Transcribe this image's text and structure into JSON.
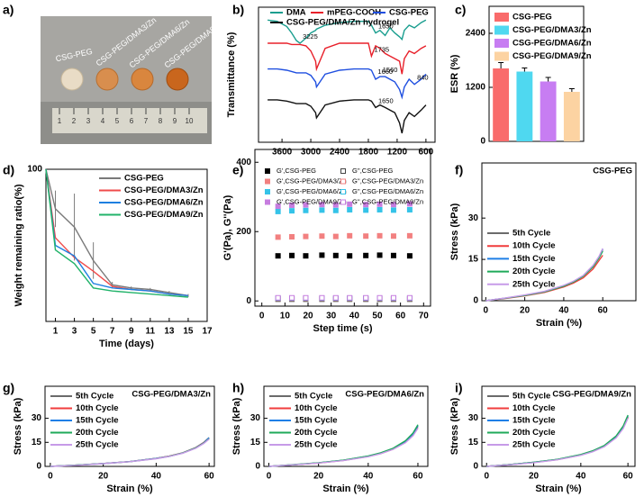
{
  "photo": {
    "panel": "a)",
    "samples": [
      "CSG-PEG",
      "CSG-PEG/DMA3/Zn",
      "CSG-PEG/DMA6/Zn",
      "CSG-PEG/DMA9/Zn"
    ],
    "ruler": [
      "1",
      "2",
      "3",
      "4",
      "5",
      "6",
      "7",
      "8",
      "9",
      "10"
    ]
  },
  "chart_data": [
    {
      "panel": "b)",
      "type": "line",
      "ylabel": "Transmittance (%)",
      "legend": "top",
      "x": [
        3900,
        3700,
        3500,
        3400,
        3300,
        3225,
        3100,
        3000,
        2900,
        2880,
        2700,
        2400,
        2100,
        1800,
        1735,
        1650,
        1560,
        1450,
        1350,
        1250,
        1150,
        1100,
        1050,
        950,
        840,
        700,
        600
      ],
      "xlim": [
        4090,
        410
      ],
      "xticks": [
        3600,
        3000,
        2400,
        1800,
        1200,
        600
      ],
      "ylim": [
        -5,
        100
      ],
      "series": [
        {
          "name": "DMA",
          "color": "#1a9e8f",
          "values": [
            90,
            89,
            85,
            80,
            74,
            72,
            76,
            80,
            82,
            83,
            86,
            88,
            89,
            89,
            86,
            80,
            82,
            78,
            84,
            80,
            77,
            75,
            82,
            86,
            84,
            88,
            90
          ],
          "peaks": [
            3225,
            1650
          ]
        },
        {
          "name": "mPEG-COOH",
          "color": "#e8202a",
          "values": [
            72,
            72,
            72,
            71,
            71,
            71,
            70,
            66,
            58,
            52,
            68,
            72,
            72,
            72,
            62,
            70,
            68,
            64,
            62,
            60,
            58,
            48,
            60,
            66,
            64,
            68,
            70
          ],
          "peaks": [
            1735
          ]
        },
        {
          "name": "CSG-PEG",
          "color": "#1f4fe0",
          "values": [
            52,
            52,
            51,
            50,
            49,
            49,
            49,
            47,
            42,
            38,
            48,
            51,
            52,
            52,
            51,
            44,
            46,
            46,
            44,
            42,
            36,
            30,
            38,
            44,
            40,
            44,
            48
          ],
          "peaks": [
            1560,
            1660,
            840
          ]
        },
        {
          "name": "CSG-PEG/DMA/Zn hydrogel",
          "color": "#111111",
          "values": [
            28,
            28,
            27,
            26,
            25,
            25,
            25,
            23,
            18,
            14,
            24,
            27,
            28,
            28,
            27,
            22,
            24,
            22,
            20,
            18,
            10,
            2,
            12,
            18,
            15,
            20,
            24
          ],
          "peaks": [
            1650
          ]
        }
      ]
    },
    {
      "panel": "c)",
      "type": "bar",
      "ylabel": "ESR (%)",
      "legend": "upper left",
      "categories": [
        "CSG-PEG",
        "CSG-PEG/DMA3/Zn",
        "CSG-PEG/DMA6/Zn",
        "CSG-PEG/DMA9/Zn"
      ],
      "values": [
        1620,
        1550,
        1330,
        1100
      ],
      "errors": [
        130,
        80,
        90,
        70
      ],
      "colors": [
        "#f96b6b",
        "#4fd8f0",
        "#c77df2",
        "#fcd3a2"
      ],
      "ylim": [
        0,
        3000
      ],
      "yticks": [
        0,
        1200,
        2400
      ]
    },
    {
      "panel": "d)",
      "type": "line",
      "xlabel": "Time (days)",
      "ylabel": "Weight remaining ratio(%)",
      "legend": "upper right",
      "x": [
        0,
        1,
        3,
        5,
        7,
        9,
        11,
        13,
        15
      ],
      "xlim": [
        0,
        17
      ],
      "xticks": [
        1,
        3,
        5,
        7,
        9,
        11,
        13,
        15,
        17
      ],
      "ylim": [
        0,
        100
      ],
      "yticks": [
        100
      ],
      "series": [
        {
          "name": "CSG-PEG",
          "color": "#7a7a7a",
          "values": [
            100,
            74,
            62,
            40,
            24,
            22,
            21,
            19,
            17
          ],
          "errors": [
            0,
            12,
            22,
            12,
            2,
            1,
            1,
            1,
            1
          ]
        },
        {
          "name": "CSG-PEG/DMA3/Zn",
          "color": "#ef4b4b",
          "values": [
            100,
            55,
            42,
            33,
            23,
            21,
            20,
            18,
            17
          ]
        },
        {
          "name": "CSG-PEG/DMA6/Zn",
          "color": "#1e7fe0",
          "values": [
            100,
            50,
            43,
            25,
            22,
            21,
            20,
            18,
            17
          ]
        },
        {
          "name": "CSG-PEG/DMA9/Zn",
          "color": "#22b36a",
          "values": [
            100,
            47,
            38,
            22,
            20,
            19,
            18,
            17,
            16
          ]
        }
      ]
    },
    {
      "panel": "e)",
      "type": "scatter",
      "xlabel": "Step time (s)",
      "ylabel": "G'(Pa), G''(Pa)",
      "legend": "upper left",
      "x": [
        7,
        13,
        19,
        26,
        32,
        38,
        45,
        51,
        57,
        64
      ],
      "xlim": [
        -3,
        73
      ],
      "xticks": [
        0,
        10,
        20,
        30,
        40,
        50,
        60,
        70
      ],
      "ylim": [
        -15,
        437
      ],
      "yticks": [
        0,
        200,
        400
      ],
      "series": [
        {
          "name": "G',CSG-PEG",
          "color": "#000000",
          "marker": "filled",
          "values": [
            130,
            131,
            130,
            132,
            131,
            130,
            131,
            132,
            131,
            130
          ]
        },
        {
          "name": "G',CSG-PEG/DMA3/Zn",
          "color": "#f28080",
          "marker": "filled",
          "values": [
            184,
            185,
            186,
            187,
            186,
            188,
            187,
            188,
            187,
            188
          ]
        },
        {
          "name": "G',CSG-PEG/DMA6/Zn",
          "color": "#35c3e8",
          "marker": "filled",
          "values": [
            258,
            260,
            261,
            262,
            261,
            263,
            262,
            263,
            262,
            263
          ]
        },
        {
          "name": "G',CSG-PEG/DMA9/Zn",
          "color": "#c77ddf",
          "marker": "filled",
          "values": [
            273,
            276,
            277,
            278,
            277,
            279,
            278,
            279,
            278,
            280
          ]
        },
        {
          "name": "G'',CSG-PEG",
          "color": "#444444",
          "marker": "hollow",
          "values": [
            5,
            5,
            5,
            5,
            5,
            5,
            5,
            5,
            5,
            5
          ]
        },
        {
          "name": "G'',CSG-PEG/DMA3/Zn",
          "color": "#f28080",
          "marker": "hollow",
          "values": [
            7,
            7,
            7,
            7,
            7,
            7,
            7,
            7,
            7,
            7
          ]
        },
        {
          "name": "G'',CSG-PEG/DMA6/Zn",
          "color": "#35c3e8",
          "marker": "hollow",
          "values": [
            8,
            8,
            8,
            8,
            8,
            8,
            8,
            8,
            8,
            8
          ]
        },
        {
          "name": "G'',CSG-PEG/DMA9/Zn",
          "color": "#c77ddf",
          "marker": "hollow",
          "values": [
            9,
            9,
            9,
            9,
            9,
            9,
            9,
            9,
            9,
            9
          ]
        }
      ]
    },
    {
      "panel": "f)",
      "type": "line",
      "title": "CSG-PEG",
      "xlabel": "Strain (%)",
      "ylabel": "Stress (kPa)",
      "legend": "upper left",
      "x": [
        0,
        10,
        20,
        30,
        40,
        45,
        50,
        55,
        58,
        60
      ],
      "xlim": [
        -2,
        77
      ],
      "xticks": [
        0,
        20,
        40,
        60
      ],
      "ylim": [
        0,
        50
      ],
      "yticks": [
        0,
        15,
        30
      ],
      "series": [
        {
          "name": "5th Cycle",
          "color": "#6b6b6b",
          "values": [
            0,
            0.9,
            2,
            3.3,
            5.4,
            6.9,
            9,
            12.5,
            15.8,
            18.5
          ]
        },
        {
          "name": "10th Cycle",
          "color": "#f03c3c",
          "values": [
            0,
            0.8,
            1.8,
            3,
            5,
            6.4,
            8.3,
            11.5,
            14.5,
            16.5
          ]
        },
        {
          "name": "15th Cycle",
          "color": "#1f7fe6",
          "values": [
            0,
            0.9,
            2,
            3.3,
            5.4,
            6.9,
            9,
            12.5,
            15.7,
            18.8
          ]
        },
        {
          "name": "20th Cycle",
          "color": "#1faa5a",
          "values": [
            0,
            0.9,
            1.9,
            3.2,
            5.3,
            6.8,
            8.9,
            12.3,
            15.4,
            18
          ]
        },
        {
          "name": "25th Cycle",
          "color": "#c79be8",
          "values": [
            0,
            1,
            2.1,
            3.4,
            5.6,
            7.1,
            9.2,
            12.8,
            16,
            19
          ]
        }
      ]
    },
    {
      "panel": "g)",
      "type": "line",
      "title": "CSG-PEG/DMA3/Zn",
      "xlabel": "Strain (%)",
      "ylabel": "Stress (kPa)",
      "legend": "upper left",
      "x": [
        0,
        10,
        20,
        30,
        40,
        45,
        50,
        55,
        58,
        60
      ],
      "xlim": [
        -2,
        62
      ],
      "xticks": [
        0,
        20,
        40,
        60
      ],
      "ylim": [
        0,
        50
      ],
      "yticks": [
        0,
        15,
        30
      ],
      "series": [
        {
          "name": "5th Cycle",
          "color": "#6b6b6b",
          "values": [
            0,
            0.8,
            1.8,
            3,
            5,
            6.4,
            8.5,
            11.8,
            15,
            18
          ]
        },
        {
          "name": "10th Cycle",
          "color": "#f03c3c",
          "values": [
            0,
            0.8,
            1.8,
            3,
            5,
            6.4,
            8.4,
            11.6,
            14.8,
            17.5
          ]
        },
        {
          "name": "15th Cycle",
          "color": "#1f7fe6",
          "values": [
            0,
            0.8,
            1.8,
            3,
            5,
            6.3,
            8.3,
            11.5,
            14.6,
            17.8
          ]
        },
        {
          "name": "20th Cycle",
          "color": "#1faa5a",
          "values": [
            0,
            0.8,
            1.7,
            2.9,
            4.9,
            6.3,
            8.3,
            11.5,
            14.5,
            17.2
          ]
        },
        {
          "name": "25th Cycle",
          "color": "#c79be8",
          "values": [
            0,
            0.7,
            1.7,
            2.9,
            4.8,
            6.2,
            8.2,
            11.3,
            14.3,
            17
          ]
        }
      ]
    },
    {
      "panel": "h)",
      "type": "line",
      "title": "CSG-PEG/DMA6/Zn",
      "xlabel": "Strain (%)",
      "ylabel": "Stress (kPa)",
      "legend": "upper left",
      "x": [
        0,
        10,
        20,
        30,
        40,
        45,
        50,
        55,
        58,
        60
      ],
      "xlim": [
        -2,
        64
      ],
      "xticks": [
        0,
        20,
        40,
        60
      ],
      "ylim": [
        0,
        50
      ],
      "yticks": [
        0,
        15,
        30
      ],
      "series": [
        {
          "name": "5th Cycle",
          "color": "#6b6b6b",
          "values": [
            0,
            1,
            2.2,
            3.8,
            6.3,
            8.2,
            11,
            15.5,
            20,
            25
          ]
        },
        {
          "name": "10th Cycle",
          "color": "#f03c3c",
          "values": [
            0,
            1,
            2.1,
            3.7,
            6.1,
            8,
            10.7,
            15,
            19.4,
            24
          ]
        },
        {
          "name": "15th Cycle",
          "color": "#1f7fe6",
          "values": [
            0,
            1,
            2.2,
            3.8,
            6.4,
            8.3,
            11.1,
            15.7,
            20.3,
            25.5
          ]
        },
        {
          "name": "20th Cycle",
          "color": "#1faa5a",
          "values": [
            0,
            1.1,
            2.3,
            3.9,
            6.5,
            8.5,
            11.3,
            16,
            20.8,
            26
          ]
        },
        {
          "name": "25th Cycle",
          "color": "#c79be8",
          "values": [
            0,
            1,
            2.1,
            3.6,
            6,
            7.9,
            10.6,
            14.8,
            19.1,
            23.8
          ]
        }
      ]
    },
    {
      "panel": "i)",
      "type": "line",
      "title": "CSG-PEG/DMA9/Zn",
      "xlabel": "Strain (%)",
      "ylabel": "Stress (kPa)",
      "legend": "upper left",
      "x": [
        0,
        10,
        20,
        30,
        40,
        45,
        50,
        55,
        58,
        60
      ],
      "xlim": [
        -2,
        63
      ],
      "xticks": [
        0,
        20,
        40,
        60
      ],
      "ylim": [
        0,
        50
      ],
      "yticks": [
        0,
        15,
        30
      ],
      "series": [
        {
          "name": "5th Cycle",
          "color": "#6b6b6b",
          "values": [
            0,
            1.1,
            2.5,
            4.3,
            7.2,
            9.5,
            12.8,
            18.5,
            24.5,
            31
          ]
        },
        {
          "name": "10th Cycle",
          "color": "#f03c3c",
          "values": [
            0,
            1.1,
            2.4,
            4.2,
            7,
            9.3,
            12.5,
            18,
            24,
            30.5
          ]
        },
        {
          "name": "15th Cycle",
          "color": "#1f7fe6",
          "values": [
            0,
            1.1,
            2.5,
            4.3,
            7.3,
            9.6,
            12.9,
            18.7,
            24.8,
            31.5
          ]
        },
        {
          "name": "20th Cycle",
          "color": "#1faa5a",
          "values": [
            0,
            1.2,
            2.6,
            4.4,
            7.4,
            9.7,
            13.1,
            19,
            25.2,
            32
          ]
        },
        {
          "name": "25th Cycle",
          "color": "#c79be8",
          "values": [
            0,
            1,
            2.3,
            4.1,
            6.9,
            9.1,
            12.3,
            17.8,
            23.6,
            30
          ]
        }
      ]
    }
  ]
}
